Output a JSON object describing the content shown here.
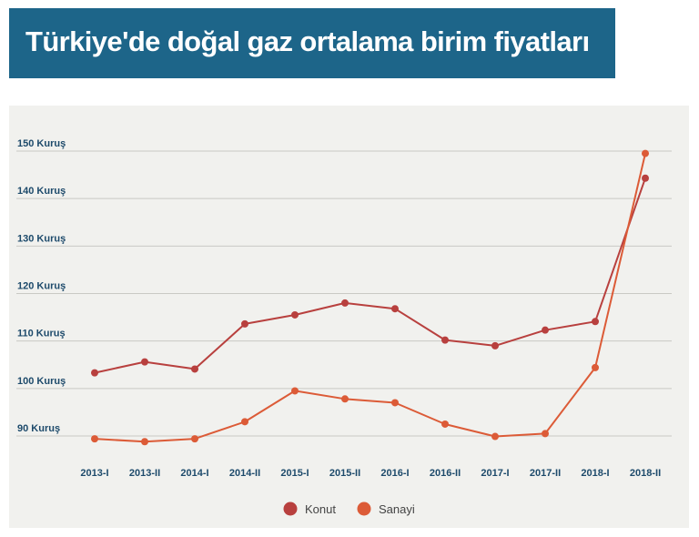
{
  "title": "Türkiye'de doğal gaz ortalama birim fiyatları",
  "colors": {
    "header_bg": "#1d6589",
    "panel_bg": "#f1f1ee",
    "konut": "#b8403e",
    "sanayi": "#dc5b37",
    "gridline": "#c9c9c4",
    "tick_text": "#1d4a6b"
  },
  "chart_data": {
    "type": "line",
    "categories": [
      "2013-I",
      "2013-II",
      "2014-I",
      "2014-II",
      "2015-I",
      "2015-II",
      "2016-I",
      "2016-II",
      "2017-I",
      "2017-II",
      "2018-I",
      "2018-II"
    ],
    "yticks": [
      "90 Kuruş",
      "100 Kuruş",
      "110 Kuruş",
      "120 Kuruş",
      "130 Kuruş",
      "140 Kuruş",
      "150 Kuruş"
    ],
    "ytick_values": [
      90,
      100,
      110,
      120,
      130,
      140,
      150
    ],
    "ylim": [
      90,
      150
    ],
    "grid": "horizontal",
    "legend_position": "bottom-center",
    "series": [
      {
        "name": "Konut",
        "color": "#b8403e",
        "values": [
          103.3,
          105.6,
          104.1,
          113.6,
          115.5,
          118.0,
          116.8,
          110.2,
          109.0,
          112.3,
          114.1,
          144.3
        ]
      },
      {
        "name": "Sanayi",
        "color": "#dc5b37",
        "values": [
          89.4,
          88.8,
          89.4,
          93.0,
          99.5,
          97.8,
          97.0,
          92.5,
          89.9,
          90.5,
          104.4,
          149.5
        ]
      }
    ]
  }
}
